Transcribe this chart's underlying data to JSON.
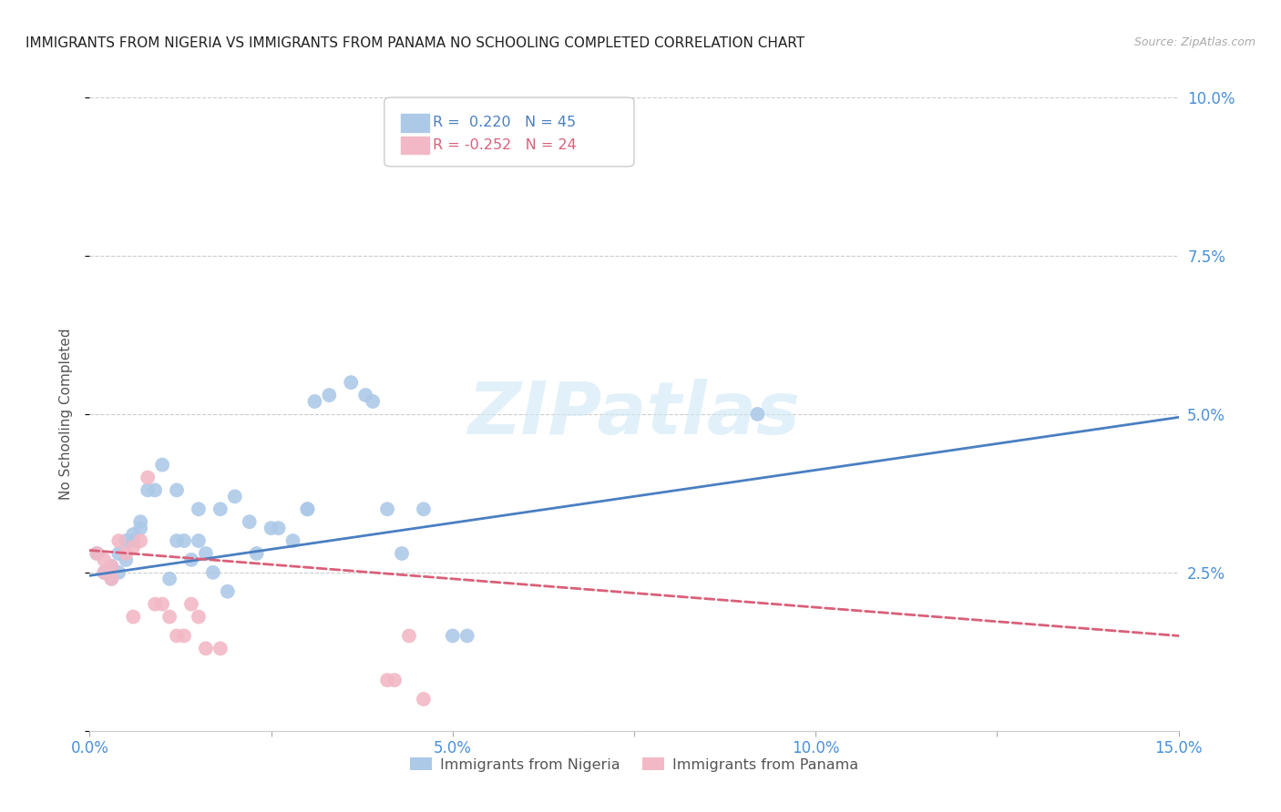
{
  "title": "IMMIGRANTS FROM NIGERIA VS IMMIGRANTS FROM PANAMA NO SCHOOLING COMPLETED CORRELATION CHART",
  "source": "Source: ZipAtlas.com",
  "ylabel": "No Schooling Completed",
  "x_min": 0.0,
  "x_max": 0.15,
  "y_min": 0.0,
  "y_max": 0.1,
  "x_ticks": [
    0.0,
    0.025,
    0.05,
    0.075,
    0.1,
    0.125,
    0.15
  ],
  "x_tick_labels": [
    "0.0%",
    "",
    "5.0%",
    "",
    "10.0%",
    "",
    "15.0%"
  ],
  "y_ticks": [
    0.0,
    0.025,
    0.05,
    0.075,
    0.1
  ],
  "y_tick_labels_right": [
    "",
    "2.5%",
    "5.0%",
    "7.5%",
    "10.0%"
  ],
  "nigeria_color": "#adc9e8",
  "nigeria_color_dark": "#4a7fc1",
  "panama_color": "#f2b8c6",
  "panama_color_dark": "#d9607a",
  "nigeria_R": 0.22,
  "nigeria_N": 45,
  "panama_R": -0.252,
  "panama_N": 24,
  "nigeria_scatter_x": [
    0.001,
    0.002,
    0.003,
    0.003,
    0.004,
    0.004,
    0.005,
    0.005,
    0.006,
    0.006,
    0.007,
    0.007,
    0.008,
    0.009,
    0.01,
    0.011,
    0.012,
    0.012,
    0.013,
    0.014,
    0.015,
    0.015,
    0.016,
    0.017,
    0.018,
    0.019,
    0.02,
    0.022,
    0.023,
    0.025,
    0.026,
    0.028,
    0.03,
    0.03,
    0.031,
    0.033,
    0.036,
    0.038,
    0.039,
    0.041,
    0.043,
    0.046,
    0.05,
    0.052,
    0.092
  ],
  "nigeria_scatter_y": [
    0.028,
    0.025,
    0.026,
    0.024,
    0.028,
    0.025,
    0.027,
    0.03,
    0.03,
    0.031,
    0.033,
    0.032,
    0.038,
    0.038,
    0.042,
    0.024,
    0.03,
    0.038,
    0.03,
    0.027,
    0.03,
    0.035,
    0.028,
    0.025,
    0.035,
    0.022,
    0.037,
    0.033,
    0.028,
    0.032,
    0.032,
    0.03,
    0.035,
    0.035,
    0.052,
    0.053,
    0.055,
    0.053,
    0.052,
    0.035,
    0.028,
    0.035,
    0.015,
    0.015,
    0.05
  ],
  "panama_scatter_x": [
    0.001,
    0.002,
    0.002,
    0.003,
    0.003,
    0.004,
    0.005,
    0.006,
    0.006,
    0.007,
    0.008,
    0.009,
    0.01,
    0.011,
    0.012,
    0.013,
    0.014,
    0.015,
    0.016,
    0.018,
    0.041,
    0.042,
    0.044,
    0.046
  ],
  "panama_scatter_y": [
    0.028,
    0.027,
    0.025,
    0.026,
    0.024,
    0.03,
    0.028,
    0.029,
    0.018,
    0.03,
    0.04,
    0.02,
    0.02,
    0.018,
    0.015,
    0.015,
    0.02,
    0.018,
    0.013,
    0.013,
    0.008,
    0.008,
    0.015,
    0.005
  ],
  "nigeria_trend_x": [
    0.0,
    0.15
  ],
  "nigeria_trend_y": [
    0.0245,
    0.0495
  ],
  "panama_trend_x": [
    0.0,
    0.15
  ],
  "panama_trend_y": [
    0.0285,
    0.015
  ],
  "watermark_text": "ZIPatlas",
  "watermark_color": "#d0e8f5",
  "background_color": "#ffffff",
  "grid_color": "#cccccc",
  "title_color": "#222222",
  "axis_tick_color": "#4a90d9",
  "legend_bg": "#ffffff",
  "legend_border": "#cccccc",
  "legend_nigeria_box": "#adc9e8",
  "legend_panama_box": "#f2b8c6",
  "legend_nigeria_text_color": "#4a7fc1",
  "legend_panama_text_color": "#d9607a",
  "bottom_legend_nigeria": "Immigrants from Nigeria",
  "bottom_legend_panama": "Immigrants from Panama"
}
